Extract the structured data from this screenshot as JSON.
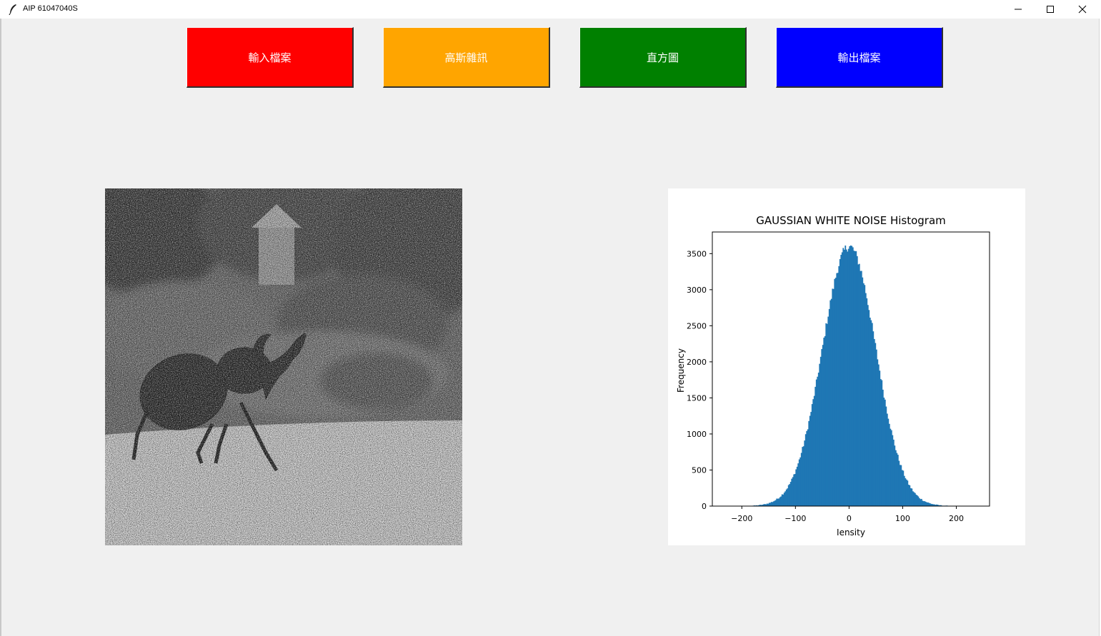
{
  "window": {
    "title": "AIP 61047040S",
    "controls": [
      "minimize-icon",
      "maximize-icon",
      "close-icon"
    ]
  },
  "toolbar": {
    "buttons": [
      {
        "label": "輸入檔案",
        "color": "#ff0000"
      },
      {
        "label": "高斯雜訊",
        "color": "#ffa500"
      },
      {
        "label": "直方圖",
        "color": "#008000"
      },
      {
        "label": "輸出檔案",
        "color": "#0000ff"
      }
    ]
  },
  "image_panel": {
    "content": "grayscale beetle photo with gaussian noise"
  },
  "chart_data": {
    "type": "bar",
    "title": "GAUSSIAN WHITE NOISE Histogram",
    "xlabel": "Iensity",
    "ylabel": "Frequency",
    "xlim": [
      -255,
      262
    ],
    "ylim": [
      0,
      3800
    ],
    "xticks": [
      -200,
      -100,
      0,
      100,
      200
    ],
    "yticks": [
      0,
      500,
      1000,
      1500,
      2000,
      2500,
      3000,
      3500
    ],
    "xtick_labels": [
      "−200",
      "−100",
      "0",
      "100",
      "200"
    ],
    "ytick_labels": [
      "0",
      "500",
      "1000",
      "1500",
      "2000",
      "2500",
      "3000",
      "3500"
    ],
    "color": "#1f77b4",
    "distribution": {
      "mean": 0,
      "std": 50,
      "peak": 3600,
      "bin_width": 2,
      "range": [
        -250,
        250
      ]
    },
    "grid": false
  }
}
